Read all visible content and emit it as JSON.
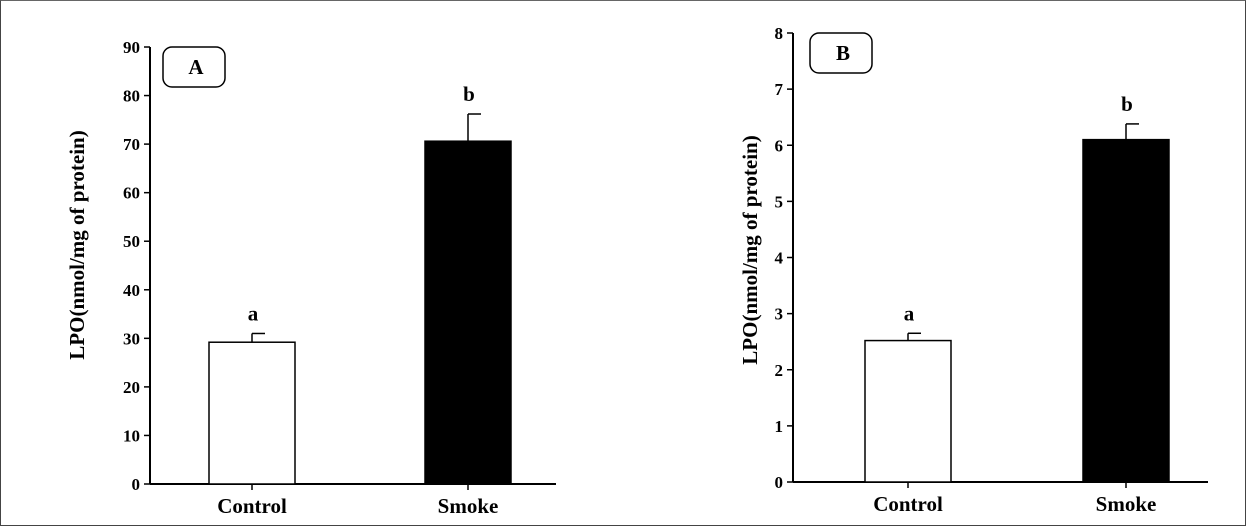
{
  "chart_data": [
    {
      "type": "bar",
      "panel_label": "A",
      "categories": [
        "Control",
        "Smoke"
      ],
      "values": [
        29.2,
        70.6
      ],
      "errors": [
        1.8,
        5.6
      ],
      "significance": [
        "a",
        "b"
      ],
      "bar_colors": [
        "#ffffff",
        "#000000"
      ],
      "ylabel": "LPO(nmol/mg of protein)",
      "xlabel": "",
      "ylim": [
        0,
        90
      ],
      "yticks": [
        0,
        10,
        20,
        30,
        40,
        50,
        60,
        70,
        80,
        90
      ],
      "grid": false
    },
    {
      "type": "bar",
      "panel_label": "B",
      "categories": [
        "Control",
        "Smoke"
      ],
      "values": [
        2.52,
        6.1
      ],
      "errors": [
        0.13,
        0.28
      ],
      "significance": [
        "a",
        "b"
      ],
      "bar_colors": [
        "#ffffff",
        "#000000"
      ],
      "ylabel": "LPO(nmol/mg of protein)",
      "xlabel": "",
      "ylim": [
        0,
        8
      ],
      "yticks": [
        0,
        1,
        2,
        3,
        4,
        5,
        6,
        7,
        8
      ],
      "grid": false
    }
  ]
}
